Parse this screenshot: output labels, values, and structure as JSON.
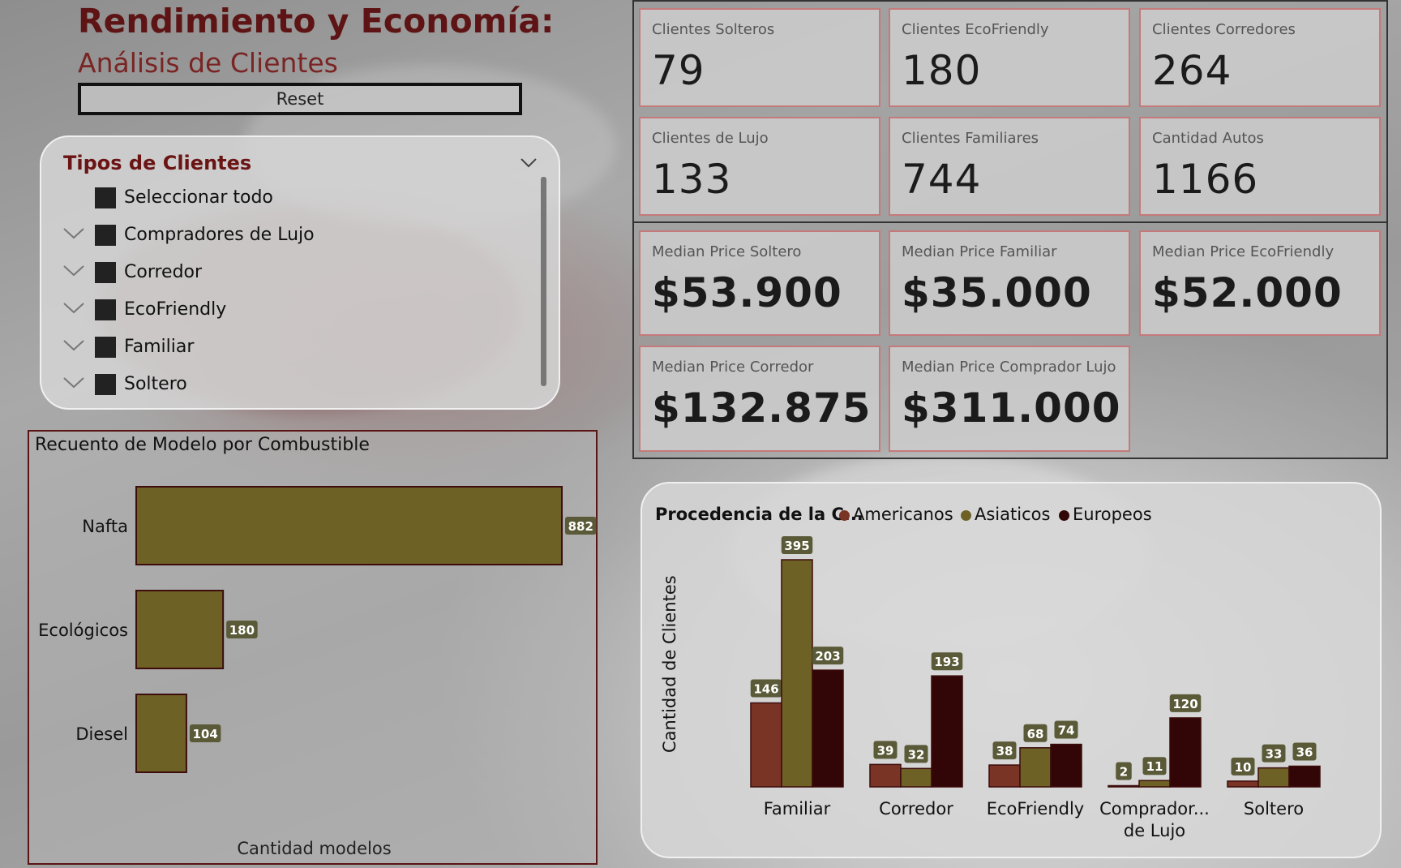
{
  "header": {
    "title": "Rendimiento y Economía:",
    "subtitle": "Análisis de Clientes",
    "reset_label": "Reset"
  },
  "slicer": {
    "title": "Tipos de Clientes",
    "items": [
      {
        "label": "Seleccionar todo",
        "expandable": false
      },
      {
        "label": "Compradores de Lujo",
        "expandable": true
      },
      {
        "label": "Corredor",
        "expandable": true
      },
      {
        "label": "EcoFriendly",
        "expandable": true
      },
      {
        "label": "Familiar",
        "expandable": true
      },
      {
        "label": "Soltero",
        "expandable": true
      }
    ]
  },
  "kpis": [
    {
      "label": "Clientes Solteros",
      "value": "79"
    },
    {
      "label": "Clientes EcoFriendly",
      "value": "180"
    },
    {
      "label": "Clientes Corredores",
      "value": "264"
    },
    {
      "label": "Clientes de Lujo",
      "value": "133"
    },
    {
      "label": "Clientes Familiares",
      "value": "744"
    },
    {
      "label": "Cantidad Autos",
      "value": "1166"
    }
  ],
  "prices": [
    {
      "label": "Median Price Soltero",
      "value": "$53.900"
    },
    {
      "label": "Median Price Familiar",
      "value": "$35.000"
    },
    {
      "label": "Median Price EcoFriendly",
      "value": "$52.000"
    },
    {
      "label": "Median Price Corredor",
      "value": "$132.875"
    },
    {
      "label": "Median Price Comprador Lujo",
      "value": "$311.000"
    }
  ],
  "colors": {
    "americanos": "#7a3426",
    "asiaticos": "#6e6126",
    "europeos": "#320606",
    "bar_border": "#3d0c0c",
    "data_label_bg": "#5a5a38",
    "title_red": "#5e1414"
  },
  "chart_data": [
    {
      "type": "bar",
      "orientation": "horizontal",
      "title": "Recuento de Modelo por Combustible",
      "xlabel": "Cantidad modelos",
      "categories": [
        "Nafta",
        "Ecológicos",
        "Diesel"
      ],
      "values": [
        882,
        180,
        104
      ],
      "xlim": [
        0,
        882
      ]
    },
    {
      "type": "bar",
      "title": "Procedencia de la C...",
      "ylabel": "Cantidad de Clientes",
      "categories": [
        "Familiar",
        "Corredor",
        "EcoFriendly",
        "Comprador... de Lujo",
        "Soltero"
      ],
      "category_lines": [
        [
          "Familiar"
        ],
        [
          "Corredor"
        ],
        [
          "EcoFriendly"
        ],
        [
          "Comprador...",
          "de Lujo"
        ],
        [
          "Soltero"
        ]
      ],
      "series": [
        {
          "name": "Americanos",
          "values": [
            146,
            39,
            38,
            2,
            10
          ]
        },
        {
          "name": "Asiaticos",
          "values": [
            395,
            32,
            68,
            11,
            33
          ]
        },
        {
          "name": "Europeos",
          "values": [
            203,
            193,
            74,
            120,
            36
          ]
        }
      ],
      "ylim": [
        0,
        395
      ],
      "legend": "top"
    }
  ]
}
